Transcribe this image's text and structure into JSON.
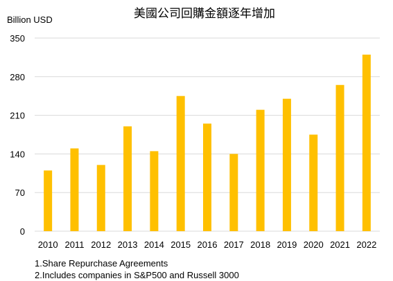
{
  "chart_data": {
    "type": "bar",
    "title": "美國公司回購金額逐年增加",
    "ylabel": "Billion USD",
    "xlabel": "",
    "categories": [
      "2010",
      "2011",
      "2012",
      "2013",
      "2014",
      "2015",
      "2016",
      "2017",
      "2018",
      "2019",
      "2020",
      "2021",
      "2022"
    ],
    "values": [
      110,
      150,
      120,
      190,
      145,
      245,
      195,
      140,
      220,
      240,
      175,
      265,
      320
    ],
    "ylim": [
      0,
      350
    ],
    "yticks": [
      "0",
      "70",
      "140",
      "210",
      "280",
      "350"
    ],
    "grid": true,
    "legend": "none",
    "bar_color": "#FFC000",
    "grid_color": "#d9d9d9"
  },
  "notes": [
    "1.Share Repurchase Agreements",
    "2.Includes companies in S&P500 and Russell 3000"
  ]
}
